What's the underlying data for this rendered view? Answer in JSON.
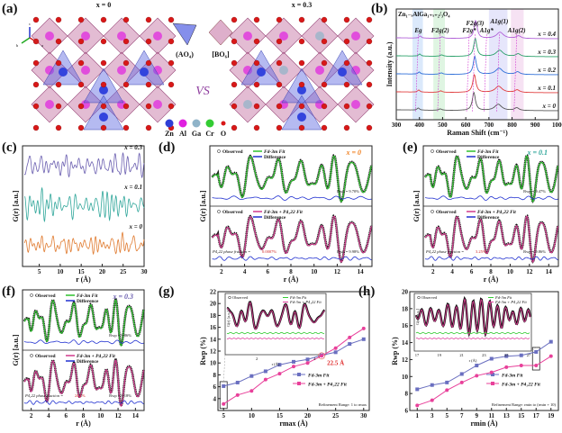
{
  "panel_labels": [
    "(a)",
    "(b)",
    "(c)",
    "(d)",
    "(e)",
    "(f)",
    "(g)",
    "(h)"
  ],
  "panel_a": {
    "title_left": "x = 0",
    "title_right": "x = 0.3",
    "unit_a": "(AO₄)",
    "unit_b": "[BO₆]",
    "vs": "VS",
    "axes_labels": [
      "c",
      "b",
      "a"
    ],
    "legend": [
      {
        "name": "Zn",
        "color": "#2f3fd6"
      },
      {
        "name": "Al",
        "color": "#e020e0"
      },
      {
        "name": "Ga",
        "color": "#8fb3c8"
      },
      {
        "name": "Cr",
        "color": "#33cc33"
      },
      {
        "name": "O",
        "color": "#d81818"
      }
    ]
  },
  "chart_data": [
    {
      "panel": "b",
      "type": "line",
      "title": "Zn₁₋ₓAlGa₁₊ₓ₊₂/₃O₄",
      "xlabel": "Raman Shift (cm⁻¹)",
      "ylabel": "Intensity (a.u.)",
      "xlim": [
        300,
        1000
      ],
      "xticks": [
        "300",
        "400",
        "500",
        "600",
        "700",
        "800",
        "900",
        "1000"
      ],
      "series": [
        {
          "name": "x = 0",
          "color": "#555555"
        },
        {
          "name": "x = 0.1",
          "color": "#e03c3c"
        },
        {
          "name": "x = 0.2",
          "color": "#2e6fd8"
        },
        {
          "name": "x = 0.3",
          "color": "#2aa06a"
        },
        {
          "name": "x = 0.4",
          "color": "#b060d8"
        }
      ],
      "peak_labels": [
        {
          "label": "Eg",
          "x": 395
        },
        {
          "label": "F2g(2)",
          "x": 490
        },
        {
          "label": "F2g*",
          "x": 615
        },
        {
          "label": "F2g(3)",
          "x": 640
        },
        {
          "label": "A1g*",
          "x": 690
        },
        {
          "label": "A1g(1)",
          "x": 745
        },
        {
          "label": "A1g(2)",
          "x": 820
        }
      ]
    },
    {
      "panel": "c",
      "type": "line",
      "xlabel": "r (Å)",
      "ylabel": "G(r) [a.u.]",
      "xlim": [
        1,
        30
      ],
      "xticks": [
        "5",
        "10",
        "15",
        "20",
        "25",
        "30"
      ],
      "series": [
        {
          "name": "x = 0.3",
          "color": "#6b5fb0"
        },
        {
          "name": "x = 0.1",
          "color": "#2fa69a"
        },
        {
          "name": "x = 0",
          "color": "#e07b30"
        }
      ]
    },
    {
      "panel": "d",
      "type": "line",
      "composition": "x = 0",
      "composition_color": "#f08020",
      "xlabel": "r (Å)",
      "ylabel": "G(r) [a.u.]",
      "xlim": [
        1,
        15
      ],
      "xticks": [
        "2",
        "4",
        "6",
        "8",
        "10",
        "12",
        "14"
      ],
      "top": {
        "legend": [
          "Observed",
          "Fd-3m Fit",
          "Difference"
        ],
        "rwp": "Rwp = 9.70%"
      },
      "bottom": {
        "legend": [
          "Observed",
          "Fd-3m + P4₁22 Fit",
          "Difference"
        ],
        "rwp": "Rwp = 9.98%",
        "phase_label": "P4₁22 phase fraction = ",
        "phase_value": "0.0007%"
      }
    },
    {
      "panel": "e",
      "type": "line",
      "composition": "x = 0.1",
      "composition_color": "#2fa69a",
      "xlabel": "r (Å)",
      "ylabel": "G(r) [a.u.]",
      "xlim": [
        1,
        15
      ],
      "xticks": [
        "2",
        "4",
        "6",
        "8",
        "10",
        "12",
        "14"
      ],
      "top": {
        "legend": [
          "Observed",
          "Fd-3m Fit",
          "Difference"
        ],
        "rwp": "Rwp = 9.47%"
      },
      "bottom": {
        "legend": [
          "Observed",
          "Fd-3m + P4₁22 Fit",
          "Difference"
        ],
        "rwp": "Rwp = 9.86%",
        "phase_label": "P4₁22 phase fraction = ",
        "phase_value": "3.25%"
      }
    },
    {
      "panel": "f",
      "type": "line",
      "composition": "x = 0.3",
      "composition_color": "#6b5fb0",
      "xlabel": "r (Å)",
      "ylabel": "G(r) [a.u.]",
      "xlim": [
        1,
        15
      ],
      "xticks": [
        "2",
        "4",
        "6",
        "8",
        "10",
        "12",
        "14"
      ],
      "top": {
        "legend": [
          "Observed",
          "Fd-3m Fit",
          "Difference"
        ],
        "rwp": "Rwp = 9.86%"
      },
      "bottom": {
        "legend": [
          "Observed",
          "Fd-3m + P4₁22 Fit",
          "Difference"
        ],
        "rwp": "Rwp = 8.18%",
        "phase_label": "P4₁22 phase fraction = ",
        "phase_value": "24.1%"
      }
    },
    {
      "panel": "g",
      "type": "line",
      "xlabel": "rmax (Å)",
      "ylabel": "Rwp (%)",
      "xlim": [
        4,
        31
      ],
      "ylim": [
        2,
        22
      ],
      "xticks": [
        "5",
        "10",
        "15",
        "20",
        "25",
        "30"
      ],
      "yticks": [
        "4",
        "6",
        "8",
        "10",
        "12",
        "14",
        "16",
        "18",
        "20",
        "22"
      ],
      "x": [
        5,
        7.5,
        10,
        12.5,
        15,
        17.5,
        20,
        22.5,
        25,
        27.5,
        30
      ],
      "series": [
        {
          "name": "Fd-3m Fit",
          "color": "#6a6fc0",
          "values": [
            6.1,
            6.7,
            7.8,
            8.6,
            9.7,
            10.2,
            10.6,
            11.3,
            11.8,
            13.2,
            14.0
          ]
        },
        {
          "name": "Fd-3m + P4₁22 Fit",
          "color": "#e8409a",
          "values": [
            3.1,
            4.6,
            5.3,
            7.2,
            8.2,
            9.4,
            10.0,
            11.2,
            12.5,
            14.3,
            15.8
          ]
        }
      ],
      "annotation": "22.5 Å",
      "note": "Refinement Range: 1 to rmax",
      "inset": {
        "legend": [
          "Observed",
          "Fd-3m Fit",
          "Fd-3m + P4₁22 Fit"
        ],
        "xlabel": "r (Å)",
        "ylabel": "G(r) [a.u.]",
        "xticks": [
          "2",
          "4"
        ]
      }
    },
    {
      "panel": "h",
      "type": "line",
      "xlabel": "rmin (Å)",
      "ylabel": "Rwp (%)",
      "xlim": [
        0,
        20
      ],
      "ylim": [
        6,
        20
      ],
      "xticks": [
        "1",
        "3",
        "5",
        "7",
        "9",
        "11",
        "13",
        "15",
        "17",
        "19"
      ],
      "yticks": [
        "6",
        "8",
        "10",
        "12",
        "14",
        "16",
        "18",
        "20"
      ],
      "x": [
        1,
        3,
        5,
        7,
        9,
        11,
        13,
        15,
        17,
        19
      ],
      "series": [
        {
          "name": "Fd-3m Fit",
          "color": "#6a6fc0",
          "values": [
            8.5,
            9.0,
            9.3,
            10.3,
            11.3,
            12.1,
            12.4,
            12.5,
            12.9,
            14.1
          ]
        },
        {
          "name": "Fd-3m + P4₁22 Fit",
          "color": "#e8409a",
          "values": [
            6.6,
            7.2,
            8.4,
            9.3,
            10.1,
            10.5,
            11.1,
            11.3,
            11.3,
            12.4
          ]
        }
      ],
      "note": "Refinement Range: rmin to (rmin + 10)",
      "inset": {
        "legend": [
          "Observed",
          "Fd-3m Fit",
          "Fd-3m + P4₁22 Fit"
        ],
        "xlabel": "r (Å)",
        "ylabel": "G(r) [a.u.]",
        "xticks": [
          "17",
          "19",
          "21",
          "23",
          "25",
          "27"
        ]
      }
    }
  ]
}
